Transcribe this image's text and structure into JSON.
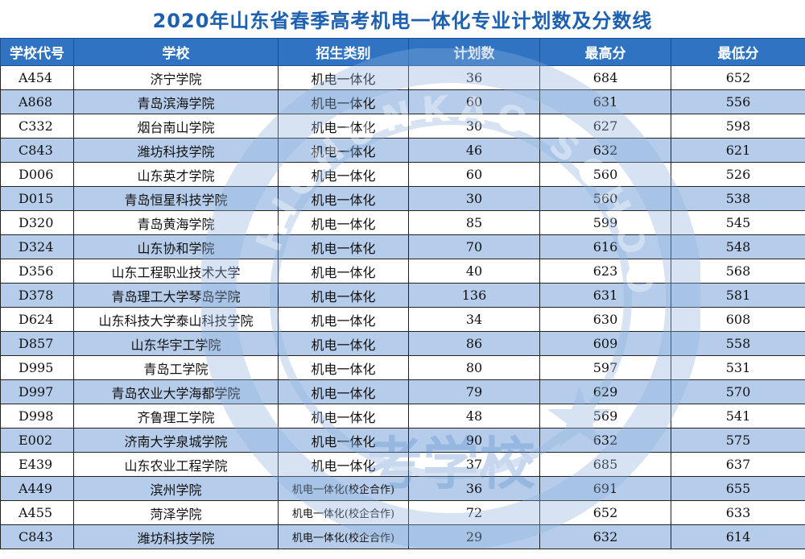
{
  "title": "2020年山东省春季高考机电一体化专业计划数及分数线",
  "headers": [
    "学校代号",
    "学校",
    "招生类别",
    "计划数",
    "最高分",
    "最低分"
  ],
  "rows": [
    {
      "code": "A454",
      "school": "济宁学院",
      "category": "机电一体化",
      "plan": "36",
      "max": "684",
      "min": "652"
    },
    {
      "code": "A868",
      "school": "青岛滨海学院",
      "category": "机电一体化",
      "plan": "60",
      "max": "631",
      "min": "556"
    },
    {
      "code": "C332",
      "school": "烟台南山学院",
      "category": "机电一体化",
      "plan": "30",
      "max": "627",
      "min": "598"
    },
    {
      "code": "C843",
      "school": "潍坊科技学院",
      "category": "机电一体化",
      "plan": "46",
      "max": "632",
      "min": "621"
    },
    {
      "code": "D006",
      "school": "山东英才学院",
      "category": "机电一体化",
      "plan": "60",
      "max": "560",
      "min": "526"
    },
    {
      "code": "D015",
      "school": "青岛恒星科技学院",
      "category": "机电一体化",
      "plan": "30",
      "max": "560",
      "min": "538"
    },
    {
      "code": "D320",
      "school": "青岛黄海学院",
      "category": "机电一体化",
      "plan": "85",
      "max": "599",
      "min": "545"
    },
    {
      "code": "D324",
      "school": "山东协和学院",
      "category": "机电一体化",
      "plan": "70",
      "max": "616",
      "min": "548"
    },
    {
      "code": "D356",
      "school": "山东工程职业技术大学",
      "category": "机电一体化",
      "plan": "40",
      "max": "623",
      "min": "568"
    },
    {
      "code": "D378",
      "school": "青岛理工大学琴岛学院",
      "category": "机电一体化",
      "plan": "136",
      "max": "631",
      "min": "581"
    },
    {
      "code": "D624",
      "school": "山东科技大学泰山科技学院",
      "category": "机电一体化",
      "plan": "34",
      "max": "630",
      "min": "608"
    },
    {
      "code": "D857",
      "school": "山东华宇工学院",
      "category": "机电一体化",
      "plan": "86",
      "max": "609",
      "min": "558"
    },
    {
      "code": "D995",
      "school": "青岛工学院",
      "category": "机电一体化",
      "plan": "80",
      "max": "597",
      "min": "531"
    },
    {
      "code": "D997",
      "school": "青岛农业大学海都学院",
      "category": "机电一体化",
      "plan": "79",
      "max": "629",
      "min": "570"
    },
    {
      "code": "D998",
      "school": "齐鲁理工学院",
      "category": "机电一体化",
      "plan": "48",
      "max": "569",
      "min": "541"
    },
    {
      "code": "E002",
      "school": "济南大学泉城学院",
      "category": "机电一体化",
      "plan": "90",
      "max": "632",
      "min": "575"
    },
    {
      "code": "E439",
      "school": "山东农业工程学院",
      "category": "机电一体化",
      "plan": "37",
      "max": "685",
      "min": "637"
    },
    {
      "code": "A449",
      "school": "滨州学院",
      "category": "机电一体化(校企合作)",
      "plan": "36",
      "max": "691",
      "min": "655"
    },
    {
      "code": "A455",
      "school": "菏泽学院",
      "category": "机电一体化(校企合作)",
      "plan": "72",
      "max": "652",
      "min": "633"
    },
    {
      "code": "C843",
      "school": "潍坊科技学院",
      "category": "机电一体化(校企合作)",
      "plan": "29",
      "max": "632",
      "min": "614"
    }
  ],
  "watermark": {
    "text": "HICHUNKAO SCHOOL",
    "glyphs": "考学校"
  }
}
